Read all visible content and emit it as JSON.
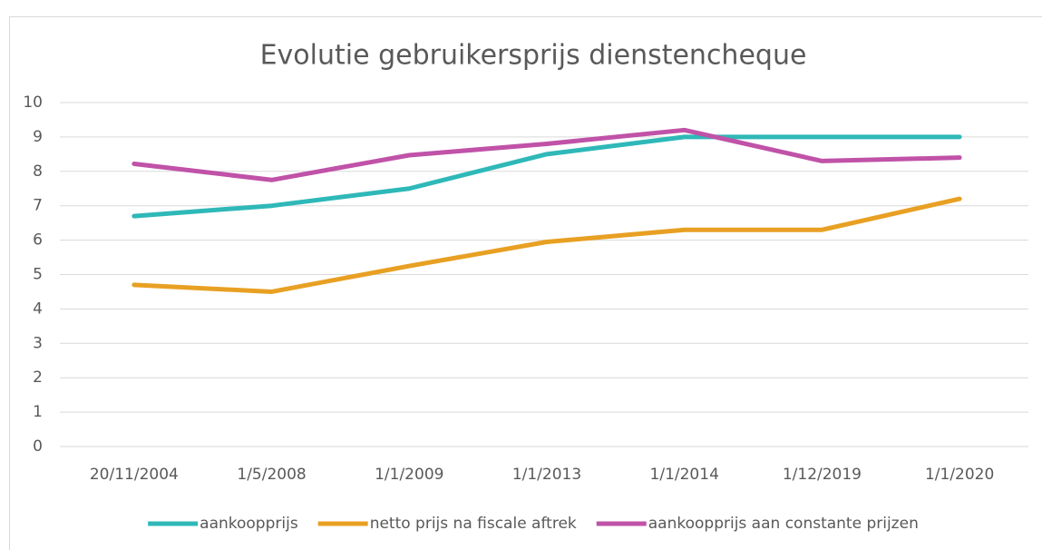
{
  "chart_data": {
    "type": "line",
    "title": "Evolutie gebruikersprijs dienstencheque",
    "categories": [
      "20/11/2004",
      "1/5/2008",
      "1/1/2009",
      "1/1/2013",
      "1/1/2014",
      "1/12/2019",
      "1/1/2020"
    ],
    "series": [
      {
        "name": "aankoopprijs",
        "color": "#2fb8b8",
        "values": [
          6.7,
          7,
          7.5,
          8.5,
          9,
          9,
          9
        ]
      },
      {
        "name": "netto prijs na fiscale aftrek",
        "color": "#e8a023",
        "values": [
          4.7,
          4.5,
          5.25,
          5.95,
          6.3,
          6.3,
          7.2
        ]
      },
      {
        "name": "aankoopprijs aan constante prijzen",
        "color": "#c052a8",
        "values": [
          8.22,
          7.75,
          8.47,
          8.8,
          9.2,
          8.3,
          8.4
        ]
      }
    ],
    "ylim": [
      0,
      10
    ],
    "yticks": [
      0,
      1,
      2,
      3,
      4,
      5,
      6,
      7,
      8,
      9,
      10
    ],
    "grid": true,
    "legend": "bottom"
  }
}
